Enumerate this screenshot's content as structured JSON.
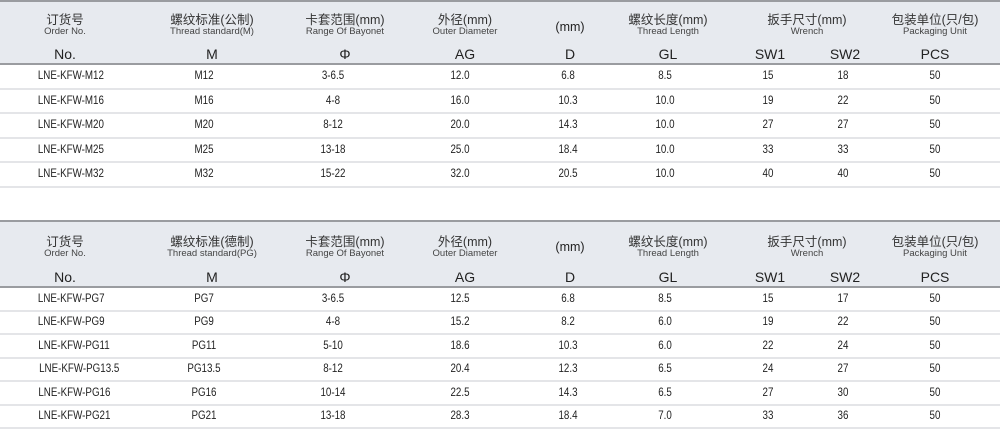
{
  "tables": [
    {
      "header": {
        "order": {
          "cn": "订货号",
          "en": "Order No.",
          "sym": "No."
        },
        "thread": {
          "cn": "螺纹标准(公制)",
          "en": "Thread standard(M)",
          "sym": "M"
        },
        "range": {
          "cn": "卡套范围(mm)",
          "en": "Range Of Bayonet",
          "sym": "Φ"
        },
        "ag": {
          "cn": "外径(mm)",
          "en": "Outer Diameter",
          "sym": "AG"
        },
        "d": {
          "cn": "(mm)",
          "sym": "D"
        },
        "gl": {
          "cn": "螺纹长度(mm)",
          "en": "Thread Length",
          "sym": "GL"
        },
        "wrench": {
          "cn": "扳手尺寸(mm)",
          "en": "Wrench",
          "sym1": "SW1",
          "sym2": "SW2"
        },
        "pcs": {
          "cn": "包装单位(只/包)",
          "en": "Packaging Unit",
          "sym": "PCS"
        }
      },
      "rows": [
        [
          "LNE-KFW-M12",
          "M12",
          "3-6.5",
          "12.0",
          "6.8",
          "8.5",
          "15",
          "18",
          "50"
        ],
        [
          "LNE-KFW-M16",
          "M16",
          "4-8",
          "16.0",
          "10.3",
          "10.0",
          "19",
          "22",
          "50"
        ],
        [
          "LNE-KFW-M20",
          "M20",
          "8-12",
          "20.0",
          "14.3",
          "10.0",
          "27",
          "27",
          "50"
        ],
        [
          "LNE-KFW-M25",
          "M25",
          "13-18",
          "25.0",
          "18.4",
          "10.0",
          "33",
          "33",
          "50"
        ],
        [
          "LNE-KFW-M32",
          "M32",
          "15-22",
          "32.0",
          "20.5",
          "10.0",
          "40",
          "40",
          "50"
        ]
      ]
    },
    {
      "header": {
        "order": {
          "cn": "订货号",
          "en": "Order No.",
          "sym": "No."
        },
        "thread": {
          "cn": "螺纹标准(德制)",
          "en": "Thread standard(PG)",
          "sym": "M"
        },
        "range": {
          "cn": "卡套范围(mm)",
          "en": "Range Of Bayonet",
          "sym": "Φ"
        },
        "ag": {
          "cn": "外径(mm)",
          "en": "Outer Diameter",
          "sym": "AG"
        },
        "d": {
          "cn": "(mm)",
          "sym": "D"
        },
        "gl": {
          "cn": "螺纹长度(mm)",
          "en": "Thread Length",
          "sym": "GL"
        },
        "wrench": {
          "cn": "扳手尺寸(mm)",
          "en": "Wrench",
          "sym1": "SW1",
          "sym2": "SW2"
        },
        "pcs": {
          "cn": "包装单位(只/包)",
          "en": "Packaging Unit",
          "sym": "PCS"
        }
      },
      "rows": [
        [
          "LNE-KFW-PG7",
          "PG7",
          "3-6.5",
          "12.5",
          "6.8",
          "8.5",
          "15",
          "17",
          "50"
        ],
        [
          "LNE-KFW-PG9",
          "PG9",
          "4-8",
          "15.2",
          "8.2",
          "6.0",
          "19",
          "22",
          "50"
        ],
        [
          "LNE-KFW-PG11",
          "PG11",
          "5-10",
          "18.6",
          "10.3",
          "6.0",
          "22",
          "24",
          "50"
        ],
        [
          "LNE-KFW-PG13.5",
          "PG13.5",
          "8-12",
          "20.4",
          "12.3",
          "6.5",
          "24",
          "27",
          "50"
        ],
        [
          "LNE-KFW-PG16",
          "PG16",
          "10-14",
          "22.5",
          "14.3",
          "6.5",
          "27",
          "30",
          "50"
        ],
        [
          "LNE-KFW-PG21",
          "PG21",
          "13-18",
          "28.3",
          "18.4",
          "7.0",
          "33",
          "36",
          "50"
        ]
      ]
    }
  ]
}
